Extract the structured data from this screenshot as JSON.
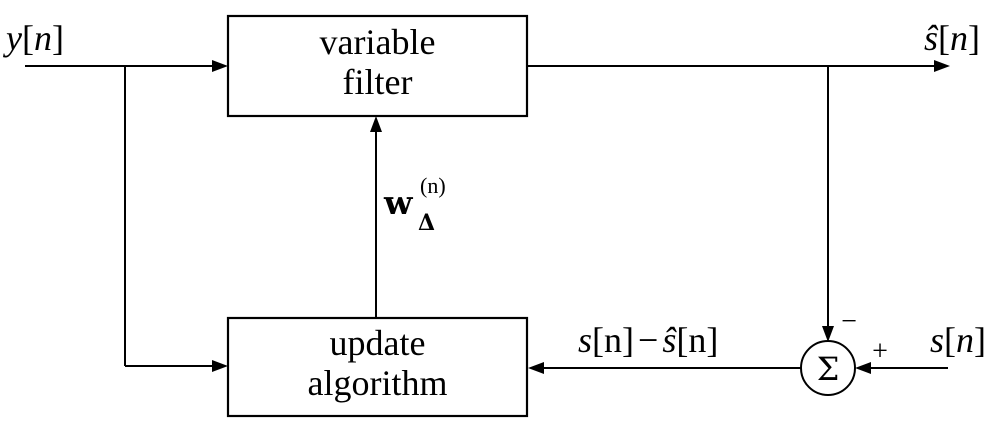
{
  "filter_block": {
    "line1": "variable",
    "line2": "filter"
  },
  "update_block": {
    "line1": "update",
    "line2": "algorithm"
  },
  "signals": {
    "input": {
      "base": "y",
      "bracket_open": "[",
      "index": "n",
      "bracket_close": "]"
    },
    "estimate_output": {
      "base": "ŝ",
      "bracket_open": "[",
      "index": "n",
      "bracket_close": "]"
    },
    "desired": {
      "base": "s",
      "bracket_open": "[",
      "index": "n",
      "bracket_close": "]"
    },
    "error": {
      "left_base": "s",
      "left_index": "[n]",
      "minus": "−",
      "right_base": "ŝ",
      "right_index": "[n]"
    },
    "weight_update": {
      "base": "w",
      "subscript": "Δ",
      "superscript": "(n)"
    }
  },
  "summing_junction": {
    "symbol": "Σ",
    "minus_sign": "−",
    "plus_sign": "+"
  }
}
